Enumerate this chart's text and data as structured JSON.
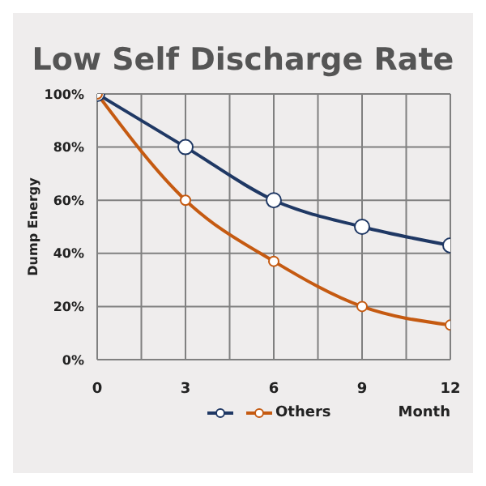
{
  "chart_data": {
    "type": "line",
    "title": "Low Self Discharge Rate",
    "xlabel": "Month",
    "ylabel": "Dump Energy",
    "x": [
      0,
      3,
      6,
      9,
      12
    ],
    "series": [
      {
        "color": "#1f3864",
        "values": [
          100,
          80,
          60,
          50,
          43
        ]
      },
      {
        "name": "Others",
        "color": "#c55a11",
        "values": [
          100,
          60,
          37,
          20,
          13
        ]
      }
    ],
    "xlim": [
      0,
      12
    ],
    "xticks": [
      0,
      {
        "value": 1.5,
        "label": null
      },
      3,
      {
        "value": 4.5,
        "label": null
      },
      6,
      {
        "value": 7.5,
        "label": null
      },
      9,
      {
        "value": 10.5,
        "label": null
      },
      12
    ],
    "ylim": [
      0,
      100
    ],
    "yticks": [
      {
        "value": 0,
        "label": "0%"
      },
      {
        "value": 20,
        "label": "20%"
      },
      {
        "value": 40,
        "label": "40%"
      },
      {
        "value": 60,
        "label": "60%"
      },
      {
        "value": 80,
        "label": "80%"
      },
      {
        "value": 100,
        "label": "100%"
      }
    ],
    "grid": true,
    "legend": "bottom",
    "marker": "circle",
    "line_style": "solid"
  }
}
